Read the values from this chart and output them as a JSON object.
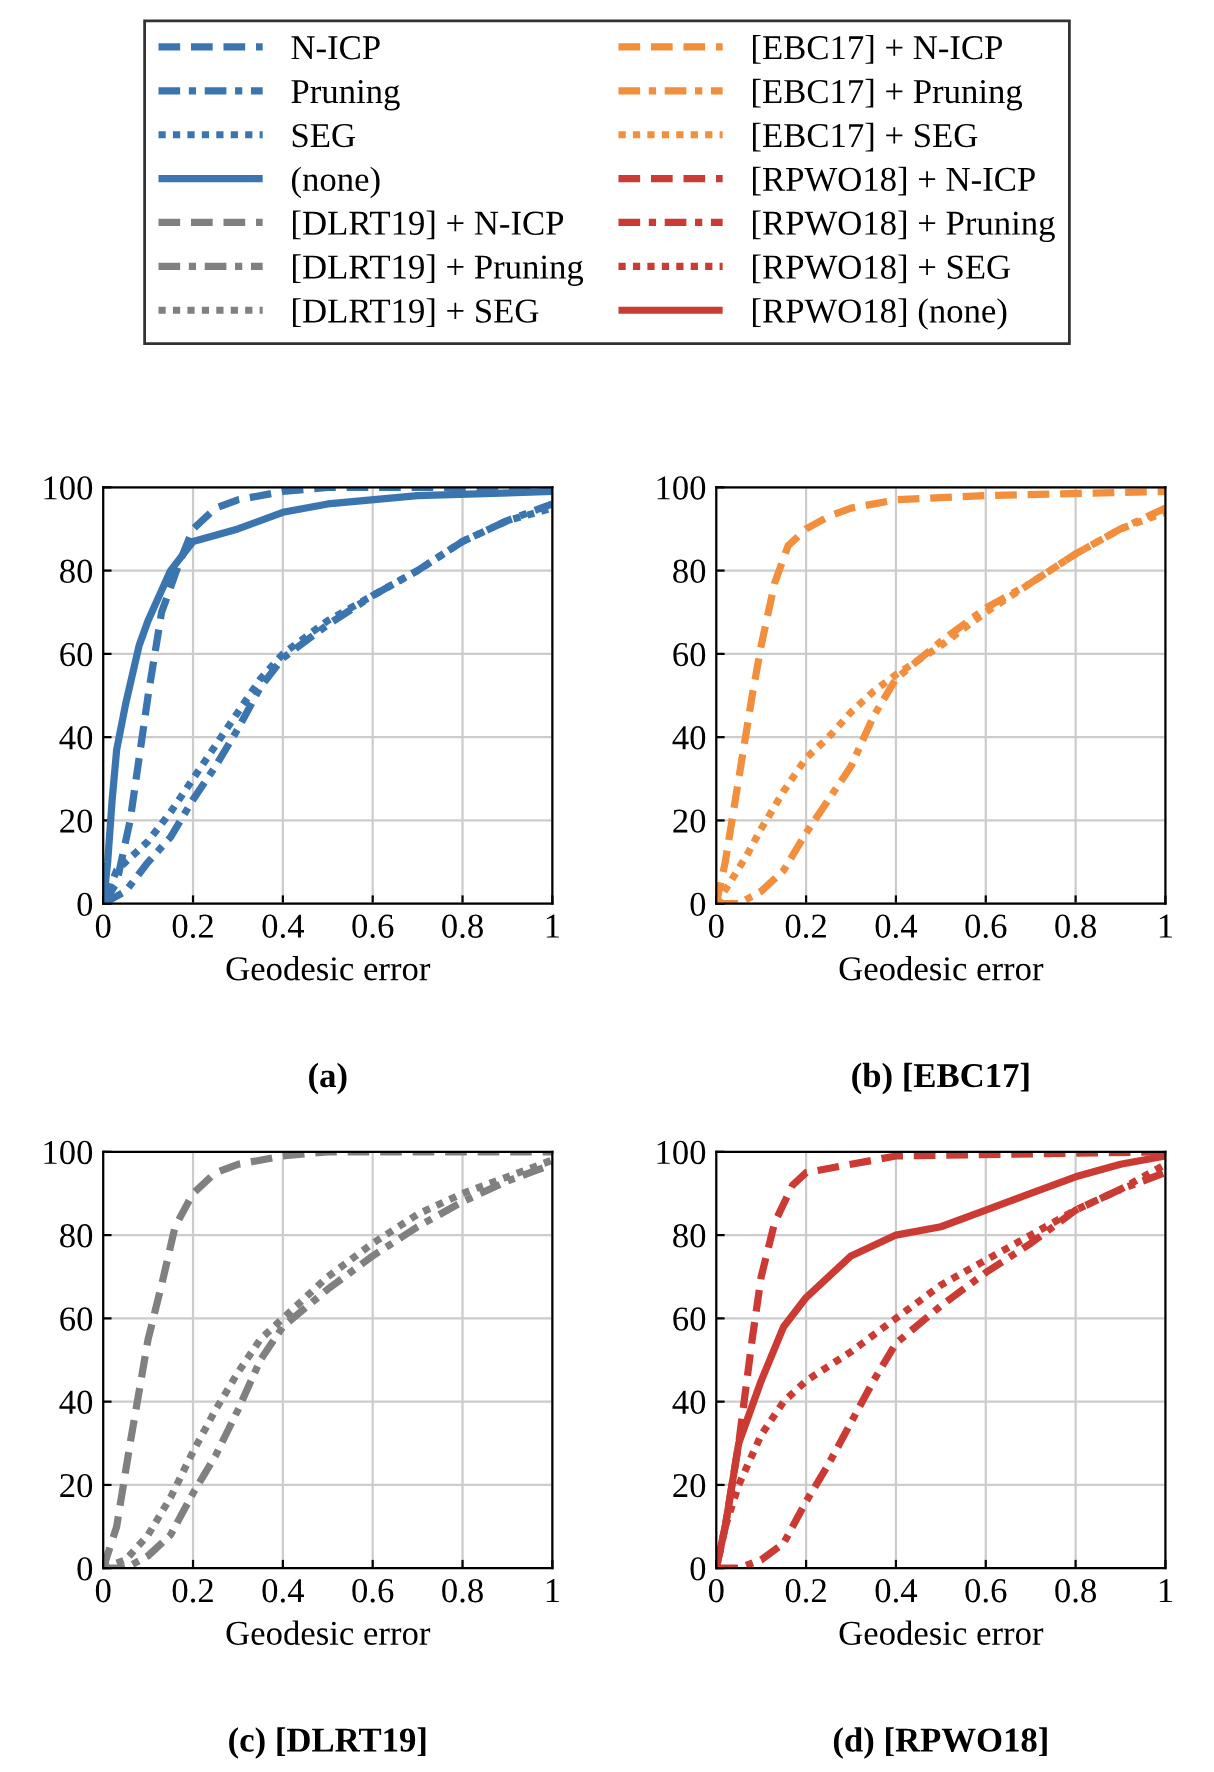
{
  "chart_data": [
    {
      "type": "line",
      "title": "(a)",
      "xlabel": "Geodesic error",
      "xlim": [
        0,
        1
      ],
      "ylim": [
        0,
        100
      ],
      "xticks": [
        0,
        0.2,
        0.4,
        0.6,
        0.8,
        1
      ],
      "yticks": [
        0,
        20,
        40,
        60,
        80,
        100
      ],
      "grid": true,
      "legend": "top",
      "series": [
        {
          "name": "N-ICP",
          "color": "#3a75b0",
          "line_style": "dashed",
          "x": [
            0,
            0.03,
            0.06,
            0.1,
            0.13,
            0.17,
            0.2,
            0.25,
            0.3,
            0.4,
            0.5,
            1
          ],
          "values": [
            0,
            5,
            20,
            50,
            70,
            82,
            90,
            95,
            97,
            99,
            100,
            100
          ]
        },
        {
          "name": "Pruning",
          "color": "#3a75b0",
          "line_style": "dashdot",
          "x": [
            0,
            0.05,
            0.1,
            0.15,
            0.2,
            0.25,
            0.3,
            0.35,
            0.4,
            0.5,
            0.6,
            0.7,
            0.8,
            0.9,
            1
          ],
          "values": [
            0,
            3,
            10,
            16,
            25,
            33,
            42,
            52,
            59,
            67,
            74,
            80,
            87,
            92,
            96
          ]
        },
        {
          "name": "SEG",
          "color": "#3a75b0",
          "line_style": "dotted",
          "x": [
            0,
            0.03,
            0.07,
            0.1,
            0.15,
            0.2,
            0.25,
            0.3,
            0.35,
            0.4,
            0.5,
            0.6,
            0.7,
            0.8,
            0.9,
            1
          ],
          "values": [
            0,
            8,
            12,
            15,
            22,
            30,
            38,
            46,
            54,
            60,
            68,
            74,
            80,
            87,
            92,
            95
          ]
        },
        {
          "name": "(none)",
          "color": "#3a75b0",
          "line_style": "solid",
          "x": [
            0,
            0.01,
            0.02,
            0.03,
            0.05,
            0.08,
            0.1,
            0.15,
            0.2,
            0.3,
            0.4,
            0.5,
            0.7,
            1
          ],
          "values": [
            0,
            10,
            25,
            37,
            48,
            62,
            68,
            80,
            87,
            90,
            94,
            96,
            98,
            99
          ]
        }
      ]
    },
    {
      "type": "line",
      "title": "(b) [EBC17]",
      "xlabel": "Geodesic error",
      "xlim": [
        0,
        1
      ],
      "ylim": [
        0,
        100
      ],
      "xticks": [
        0,
        0.2,
        0.4,
        0.6,
        0.8,
        1
      ],
      "yticks": [
        0,
        20,
        40,
        60,
        80,
        100
      ],
      "grid": true,
      "legend": "top",
      "series": [
        {
          "name": "[EBC17] + N-ICP",
          "color": "#f28e3c",
          "line_style": "dashed",
          "x": [
            0,
            0.02,
            0.05,
            0.08,
            0.1,
            0.13,
            0.16,
            0.2,
            0.25,
            0.3,
            0.4,
            0.6,
            1
          ],
          "values": [
            0,
            10,
            30,
            50,
            62,
            77,
            86,
            90,
            93,
            95,
            97,
            98,
            99
          ]
        },
        {
          "name": "[EBC17] + Pruning",
          "color": "#f28e3c",
          "line_style": "dashdot",
          "x": [
            0,
            0.05,
            0.1,
            0.15,
            0.2,
            0.25,
            0.3,
            0.35,
            0.4,
            0.5,
            0.6,
            0.7,
            0.8,
            0.9,
            1
          ],
          "values": [
            0,
            0,
            3,
            8,
            17,
            25,
            33,
            45,
            54,
            63,
            71,
            77,
            84,
            90,
            95
          ]
        },
        {
          "name": "[EBC17] + SEG",
          "color": "#f28e3c",
          "line_style": "dotted",
          "x": [
            0,
            0.03,
            0.07,
            0.1,
            0.15,
            0.2,
            0.25,
            0.3,
            0.35,
            0.4,
            0.5,
            0.6,
            0.7,
            0.8,
            0.9,
            1
          ],
          "values": [
            0,
            5,
            12,
            18,
            27,
            35,
            40,
            46,
            51,
            55,
            62,
            70,
            77,
            84,
            90,
            94
          ]
        }
      ]
    },
    {
      "type": "line",
      "title": "(c) [DLRT19]",
      "xlabel": "Geodesic error",
      "xlim": [
        0,
        1
      ],
      "ylim": [
        0,
        100
      ],
      "xticks": [
        0,
        0.2,
        0.4,
        0.6,
        0.8,
        1
      ],
      "yticks": [
        0,
        20,
        40,
        60,
        80,
        100
      ],
      "grid": true,
      "legend": "top",
      "series": [
        {
          "name": "[DLRT19] + N-ICP",
          "color": "#808080",
          "line_style": "dashed",
          "x": [
            0,
            0.03,
            0.06,
            0.1,
            0.13,
            0.16,
            0.2,
            0.25,
            0.3,
            0.4,
            0.5,
            1
          ],
          "values": [
            0,
            10,
            30,
            55,
            68,
            82,
            90,
            95,
            97,
            99,
            100,
            100
          ]
        },
        {
          "name": "[DLRT19] + Pruning",
          "color": "#808080",
          "line_style": "dashdot",
          "x": [
            0,
            0.05,
            0.1,
            0.15,
            0.2,
            0.25,
            0.3,
            0.35,
            0.4,
            0.5,
            0.6,
            0.7,
            0.8,
            0.9,
            1
          ],
          "values": [
            0,
            0,
            3,
            8,
            18,
            27,
            38,
            50,
            58,
            67,
            75,
            82,
            88,
            93,
            97
          ]
        },
        {
          "name": "[DLRT19] + SEG",
          "color": "#808080",
          "line_style": "dotted",
          "x": [
            0,
            0.05,
            0.1,
            0.15,
            0.2,
            0.25,
            0.3,
            0.35,
            0.4,
            0.5,
            0.6,
            0.7,
            0.8,
            0.9,
            1
          ],
          "values": [
            0,
            2,
            8,
            17,
            28,
            38,
            47,
            55,
            60,
            70,
            78,
            85,
            90,
            94,
            98
          ]
        }
      ]
    },
    {
      "type": "line",
      "title": "(d) [RPWO18]",
      "xlabel": "Geodesic error",
      "xlim": [
        0,
        1
      ],
      "ylim": [
        0,
        100
      ],
      "xticks": [
        0,
        0.2,
        0.4,
        0.6,
        0.8,
        1
      ],
      "yticks": [
        0,
        20,
        40,
        60,
        80,
        100
      ],
      "grid": true,
      "legend": "top",
      "series": [
        {
          "name": "[RPWO18] + N-ICP",
          "color": "#cc3b33",
          "line_style": "dashed",
          "x": [
            0,
            0.02,
            0.05,
            0.08,
            0.1,
            0.13,
            0.17,
            0.2,
            0.3,
            0.4,
            1
          ],
          "values": [
            0,
            10,
            30,
            55,
            70,
            83,
            92,
            95,
            97,
            99,
            100
          ]
        },
        {
          "name": "[RPWO18] + Pruning",
          "color": "#cc3b33",
          "line_style": "dashdot",
          "x": [
            0,
            0.05,
            0.1,
            0.15,
            0.2,
            0.25,
            0.3,
            0.35,
            0.4,
            0.5,
            0.6,
            0.7,
            0.8,
            0.9,
            1
          ],
          "values": [
            0,
            0,
            2,
            6,
            16,
            25,
            35,
            45,
            54,
            63,
            71,
            78,
            86,
            91,
            95
          ]
        },
        {
          "name": "[RPWO18] + SEG",
          "color": "#cc3b33",
          "line_style": "dotted",
          "x": [
            0,
            0.02,
            0.05,
            0.1,
            0.15,
            0.2,
            0.3,
            0.4,
            0.5,
            0.6,
            0.7,
            0.8,
            0.9,
            1
          ],
          "values": [
            0,
            10,
            20,
            32,
            40,
            45,
            52,
            60,
            68,
            74,
            80,
            86,
            91,
            97
          ]
        },
        {
          "name": "[RPWO18] (none)",
          "color": "#cc3b33",
          "line_style": "solid",
          "x": [
            0,
            0.02,
            0.05,
            0.1,
            0.15,
            0.2,
            0.3,
            0.4,
            0.5,
            0.6,
            0.7,
            0.8,
            0.9,
            1
          ],
          "values": [
            0,
            10,
            30,
            45,
            58,
            65,
            75,
            80,
            82,
            86,
            90,
            94,
            97,
            99
          ]
        }
      ]
    }
  ]
}
